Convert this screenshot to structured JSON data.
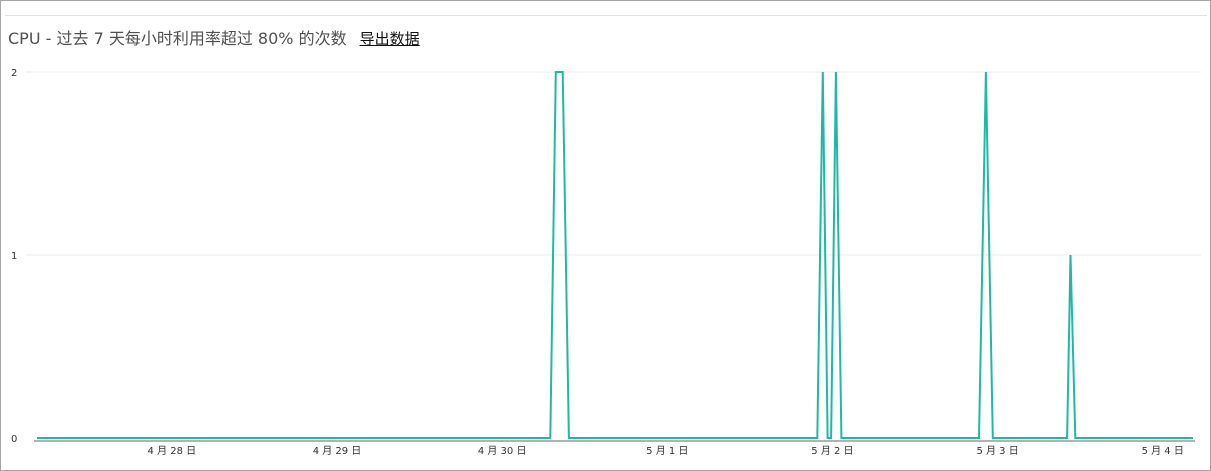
{
  "header": {
    "title": "CPU - 过去 7 天每小时利用率超过 80% 的次数",
    "export_label": "导出数据"
  },
  "colors": {
    "series": "#1fb8a4",
    "grid": "#ebebeb",
    "axis": "#666666"
  },
  "chart_data": {
    "type": "line",
    "title": "CPU - 过去 7 天每小时利用率超过 80% 的次数",
    "xlabel": "",
    "ylabel": "",
    "ylim": [
      0,
      2
    ],
    "grid": true,
    "y_ticks": [
      "0",
      "1",
      "2"
    ],
    "x_ticks": [
      {
        "label": "4 月 28 日",
        "hour": 19.6
      },
      {
        "label": "4 月 29 日",
        "hour": 43.6
      },
      {
        "label": "4 月 30 日",
        "hour": 67.6
      },
      {
        "label": "5 月 1 日",
        "hour": 91.6
      },
      {
        "label": "5 月 2 日",
        "hour": 115.6
      },
      {
        "label": "5 月 3 日",
        "hour": 139.6
      },
      {
        "label": "5 月 4 日",
        "hour": 163.6
      }
    ],
    "series": [
      {
        "x": [
          0,
          74.6,
          75.4,
          76.4,
          77.3,
          113.4,
          114.2,
          114.9,
          115.4,
          116.1,
          116.9,
          136.9,
          137.9,
          138.9,
          149.7,
          150.2,
          150.9,
          168
        ],
        "y": [
          0,
          0,
          2,
          2,
          0,
          0,
          2,
          0,
          0,
          2,
          0,
          0,
          2,
          0,
          0,
          1,
          0,
          0
        ]
      }
    ]
  }
}
